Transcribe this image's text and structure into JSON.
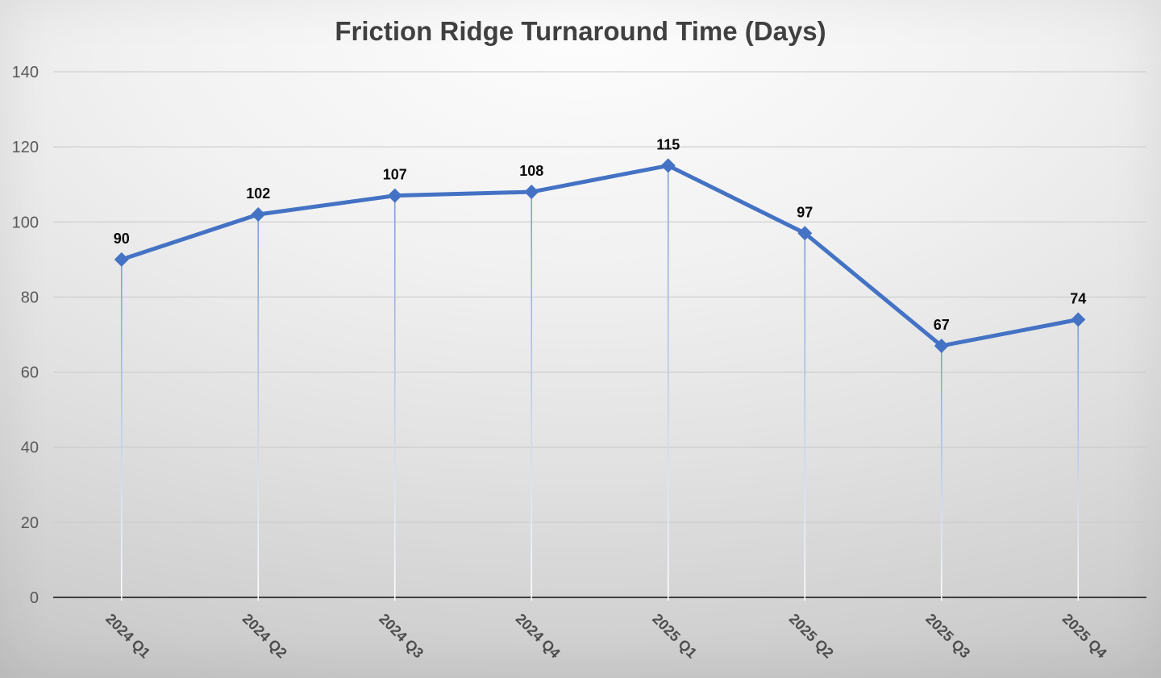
{
  "chart_data": {
    "type": "line",
    "title": "Friction Ridge Turnaround Time (Days)",
    "categories": [
      "2024 Q1",
      "2024 Q2",
      "2024 Q3",
      "2024 Q4",
      "2025 Q1",
      "2025 Q2",
      "2025 Q3",
      "2025 Q4"
    ],
    "values": [
      90,
      102,
      107,
      108,
      115,
      97,
      67,
      74
    ],
    "data_labels": [
      "90",
      "102",
      "107",
      "108",
      "115",
      "97",
      "67",
      "74"
    ],
    "xlabel": "",
    "ylabel": "",
    "ylim": [
      0,
      140
    ],
    "yticks": [
      0,
      20,
      40,
      60,
      80,
      100,
      120,
      140
    ],
    "ytick_labels": [
      "0",
      "20",
      "40",
      "60",
      "80",
      "100",
      "120",
      "140"
    ],
    "grid": true,
    "legend_position": "none",
    "marker": "diamond",
    "drop_lines": true
  },
  "colors": {
    "series": "#4472C4",
    "drop_line_top": "#7D9DD7",
    "drop_line_bottom": "#FFFFFF",
    "gridline": "#C8C8C8",
    "axis_line": "#3D3D3D",
    "ytick_label": "#595959",
    "xtick_label": "#4D4D4D",
    "data_label": "#0A0A0A",
    "title": "#404040"
  }
}
